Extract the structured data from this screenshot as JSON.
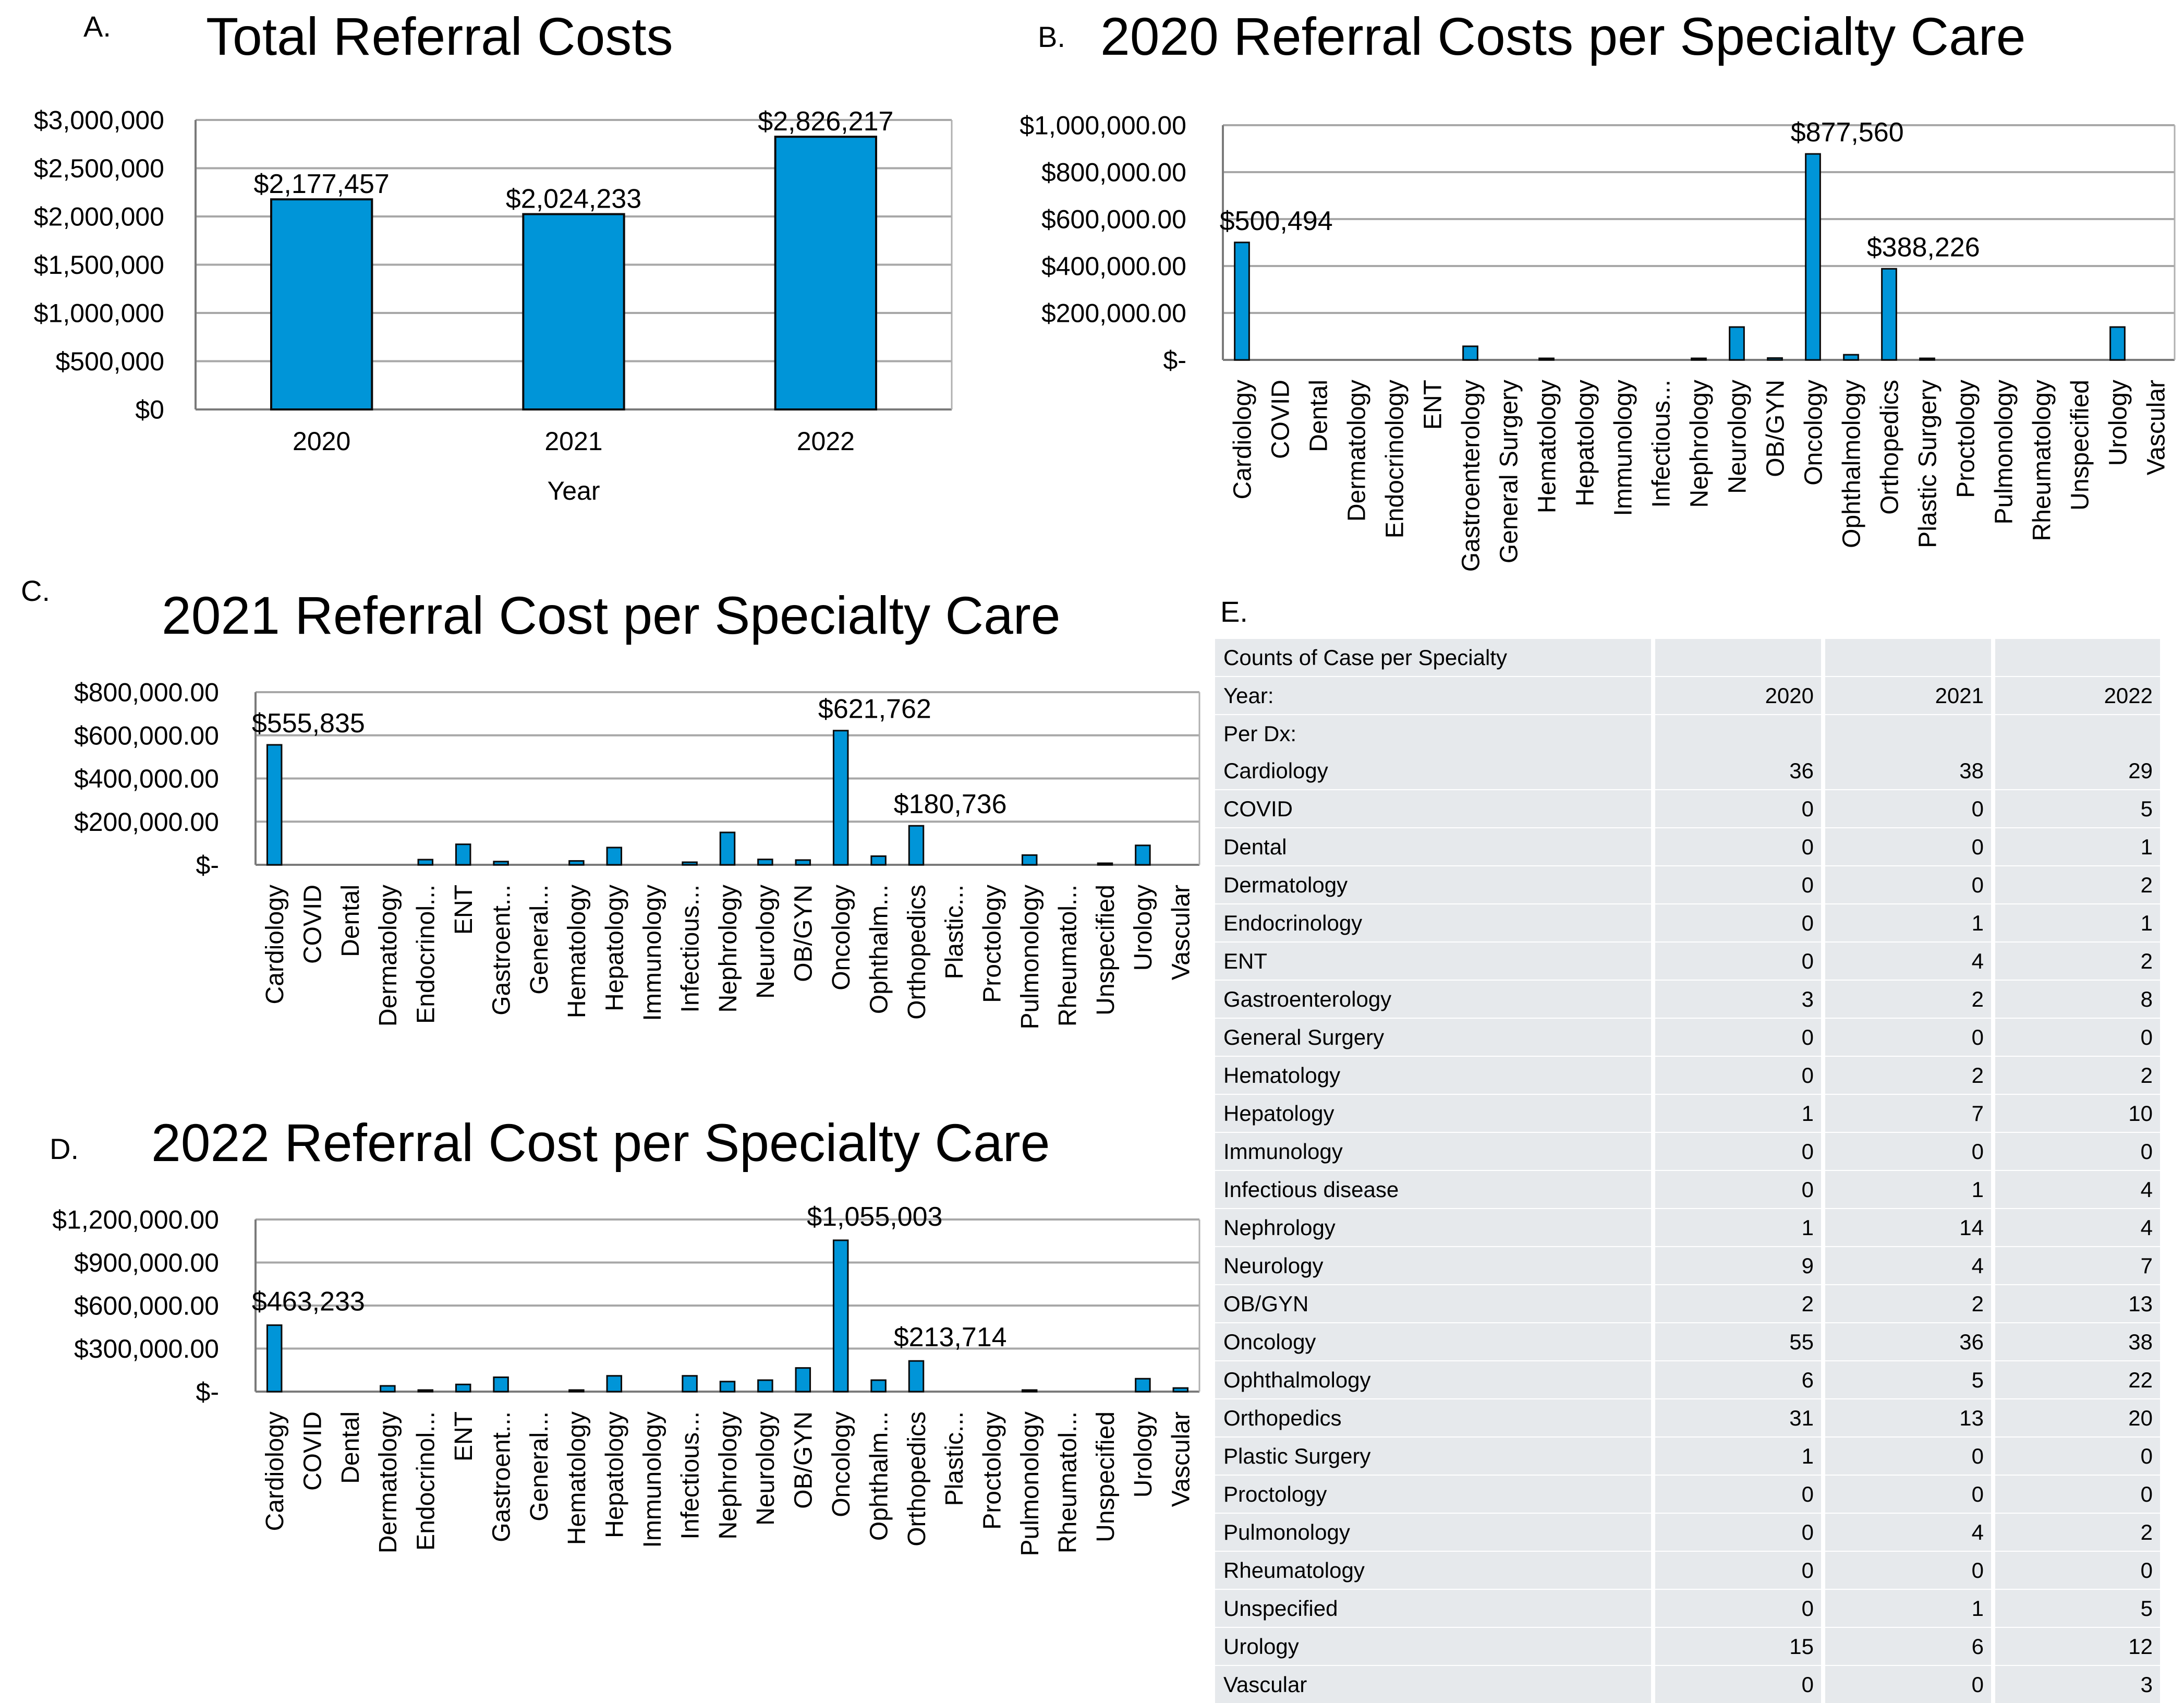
{
  "colors": {
    "bar": "#0095d8",
    "bar_stroke": "#0a0a0a",
    "grid": "#a8a8a8",
    "table_bg": "#e6e9ec"
  },
  "panels": {
    "a": "A.",
    "b": "B.",
    "c": "C.",
    "d": "D.",
    "e": "E."
  },
  "chart_data": [
    {
      "type": "bar",
      "title": "Total Referral Costs",
      "categories": [
        "2020",
        "2021",
        "2022"
      ],
      "values": [
        2177457,
        2024233,
        2826217
      ],
      "data_labels": [
        "$2,177,457",
        "$2,024,233",
        "$2,826,217"
      ],
      "xlabel": "Year",
      "ylabel": "",
      "ylim": [
        0,
        3000000
      ],
      "yticks": [
        0,
        500000,
        1000000,
        1500000,
        2000000,
        2500000,
        3000000
      ],
      "ytick_labels": [
        "$0",
        "$500,000",
        "$1,000,000",
        "$1,500,000",
        "$2,000,000",
        "$2,500,000",
        "$3,000,000"
      ],
      "grid": true
    },
    {
      "type": "bar",
      "title": "2020 Referral Costs per Specialty Care",
      "categories": [
        "Cardiology",
        "COVID",
        "Dental",
        "Dermatology",
        "Endocrinology",
        "ENT",
        "Gastroenterology",
        "General Surgery",
        "Hematology",
        "Hepatology",
        "Immunology",
        "Infectious...",
        "Nephrology",
        "Neurology",
        "OB/GYN",
        "Oncology",
        "Ophthalmology",
        "Orthopedics",
        "Plastic Surgery",
        "Proctology",
        "Pulmonology",
        "Rheumatology",
        "Unspecified",
        "Urology",
        "Vascular"
      ],
      "values": [
        500494,
        0,
        0,
        0,
        0,
        0,
        58000,
        0,
        5000,
        0,
        0,
        0,
        6000,
        140000,
        8000,
        877560,
        22000,
        388226,
        3000,
        0,
        0,
        0,
        0,
        140000,
        0
      ],
      "data_labels": [
        {
          "category": "Cardiology",
          "text": "$500,494"
        },
        {
          "category": "Oncology",
          "text": "$877,560"
        },
        {
          "category": "Orthopedics",
          "text": "$388,226"
        }
      ],
      "ylim": [
        0,
        1000000
      ],
      "yticks": [
        0,
        200000,
        400000,
        600000,
        800000,
        1000000
      ],
      "ytick_labels": [
        "$-",
        "$200,000.00",
        "$400,000.00",
        "$600,000.00",
        "$800,000.00",
        "$1,000,000.00"
      ],
      "grid": true
    },
    {
      "type": "bar",
      "title": "2021 Referral Cost per Specialty Care",
      "categories": [
        "Cardiology",
        "COVID",
        "Dental",
        "Dermatology",
        "Endocrinol...",
        "ENT",
        "Gastroent...",
        "General...",
        "Hematology",
        "Hepatology",
        "Immunology",
        "Infectious...",
        "Nephrology",
        "Neurology",
        "OB/GYN",
        "Oncology",
        "Ophthalm...",
        "Orthopedics",
        "Plastic...",
        "Proctology",
        "Pulmonology",
        "Rheumatol...",
        "Unspecified",
        "Urology",
        "Vascular"
      ],
      "values": [
        555835,
        0,
        0,
        0,
        24000,
        95000,
        15000,
        0,
        18000,
        80000,
        0,
        12000,
        150000,
        25000,
        22000,
        621762,
        40000,
        180736,
        0,
        0,
        45000,
        0,
        3000,
        90000,
        0
      ],
      "data_labels": [
        {
          "category": "Cardiology",
          "text": "$555,835"
        },
        {
          "category": "Oncology",
          "text": "$621,762"
        },
        {
          "category": "Orthopedics",
          "text": "$180,736"
        }
      ],
      "ylim": [
        0,
        800000
      ],
      "yticks": [
        0,
        200000,
        400000,
        600000,
        800000
      ],
      "ytick_labels": [
        "$-",
        "$200,000.00",
        "$400,000.00",
        "$600,000.00",
        "$800,000.00"
      ],
      "grid": true
    },
    {
      "type": "bar",
      "title": "2022 Referral Cost per Specialty Care",
      "categories": [
        "Cardiology",
        "COVID",
        "Dental",
        "Dermatology",
        "Endocrinol...",
        "ENT",
        "Gastroent...",
        "General...",
        "Hematology",
        "Hepatology",
        "Immunology",
        "Infectious...",
        "Nephrology",
        "Neurology",
        "OB/GYN",
        "Oncology",
        "Ophthalm...",
        "Orthopedics",
        "Plastic...",
        "Proctology",
        "Pulmonology",
        "Rheumatol...",
        "Unspecified",
        "Urology",
        "Vascular"
      ],
      "values": [
        463233,
        0,
        0,
        40000,
        8000,
        50000,
        100000,
        0,
        5000,
        110000,
        0,
        110000,
        70000,
        80000,
        165000,
        1055003,
        80000,
        213714,
        0,
        0,
        8000,
        0,
        0,
        90000,
        25000
      ],
      "data_labels": [
        {
          "category": "Cardiology",
          "text": "$463,233"
        },
        {
          "category": "Oncology",
          "text": "$1,055,003"
        },
        {
          "category": "Orthopedics",
          "text": "$213,714"
        }
      ],
      "ylim": [
        0,
        1200000
      ],
      "yticks": [
        0,
        300000,
        600000,
        900000,
        1200000
      ],
      "ytick_labels": [
        "$-",
        "$300,000.00",
        "$600,000.00",
        "$900,000.00",
        "$1,200,000.00"
      ],
      "grid": true
    },
    {
      "type": "table",
      "title": "Counts of Case per Specialty",
      "year_label": "Year:",
      "years": [
        "2020",
        "2021",
        "2022"
      ],
      "subheader": "Per Dx:",
      "rows": [
        [
          "Cardiology",
          "36",
          "38",
          "29"
        ],
        [
          "COVID",
          "0",
          "0",
          "5"
        ],
        [
          "Dental",
          "0",
          "0",
          "1"
        ],
        [
          "Dermatology",
          "0",
          "0",
          "2"
        ],
        [
          "Endocrinology",
          "0",
          "1",
          "1"
        ],
        [
          "ENT",
          "0",
          "4",
          "2"
        ],
        [
          "Gastroenterology",
          "3",
          "2",
          "8"
        ],
        [
          "General Surgery",
          "0",
          "0",
          "0"
        ],
        [
          "Hematology",
          "0",
          "2",
          "2"
        ],
        [
          "Hepatology",
          "1",
          "7",
          "10"
        ],
        [
          "Immunology",
          "0",
          "0",
          "0"
        ],
        [
          "Infectious disease",
          "0",
          "1",
          "4"
        ],
        [
          "Nephrology",
          "1",
          "14",
          "4"
        ],
        [
          "Neurology",
          "9",
          "4",
          "7"
        ],
        [
          "OB/GYN",
          "2",
          "2",
          "13"
        ],
        [
          "Oncology",
          "55",
          "36",
          "38"
        ],
        [
          "Ophthalmology",
          "6",
          "5",
          "22"
        ],
        [
          "Orthopedics",
          "31",
          "13",
          "20"
        ],
        [
          "Plastic Surgery",
          "1",
          "0",
          "0"
        ],
        [
          "Proctology",
          "0",
          "0",
          "0"
        ],
        [
          "Pulmonology",
          "0",
          "4",
          "2"
        ],
        [
          "Rheumatology",
          "0",
          "0",
          "0"
        ],
        [
          "Unspecified",
          "0",
          "1",
          "5"
        ],
        [
          "Urology",
          "15",
          "6",
          "12"
        ],
        [
          "Vascular",
          "0",
          "0",
          "3"
        ]
      ]
    }
  ]
}
